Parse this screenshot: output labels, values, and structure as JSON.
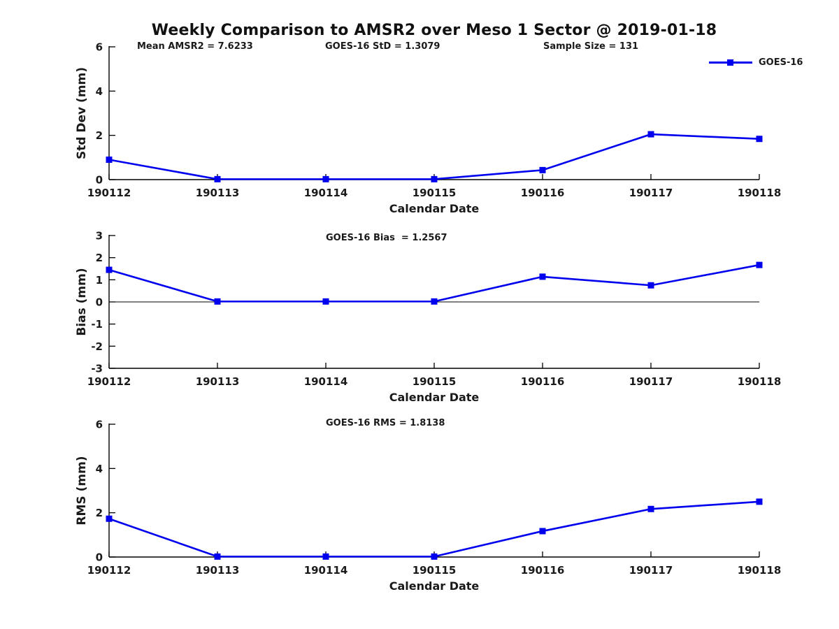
{
  "title": "Weekly Comparison to AMSR2 over Meso 1 Sector @ 2019-01-18",
  "header_stats": {
    "mean_amsr2": "Mean AMSR2 = 7.6233",
    "goes16_std": "GOES-16 StD = 1.3079",
    "sample_size": "Sample Size = 131"
  },
  "legend": {
    "label": "GOES-16",
    "color": "#0000EE",
    "marker": "square",
    "position": "top-right"
  },
  "axis_colors": {
    "axis": "#000000",
    "text": "#1a1a1a"
  },
  "chart_data": [
    {
      "type": "line",
      "categories": [
        "190112",
        "190113",
        "190114",
        "190115",
        "190116",
        "190117",
        "190118"
      ],
      "series": [
        {
          "name": "GOES-16",
          "values": [
            0.9,
            0.02,
            0.02,
            0.02,
            0.43,
            2.05,
            1.84
          ]
        }
      ],
      "xlabel": "Calendar Date",
      "ylabel": "Std Dev (mm)",
      "ylim": [
        0,
        6
      ],
      "yticks": [
        0,
        2,
        4,
        6
      ],
      "zero_line": false,
      "grid": false,
      "annotation": ""
    },
    {
      "type": "line",
      "categories": [
        "190112",
        "190113",
        "190114",
        "190115",
        "190116",
        "190117",
        "190118"
      ],
      "series": [
        {
          "name": "GOES-16",
          "values": [
            1.45,
            0.02,
            0.02,
            0.02,
            1.14,
            0.75,
            1.67
          ]
        }
      ],
      "xlabel": "Calendar Date",
      "ylabel": "Bias (mm)",
      "ylim": [
        -3,
        3
      ],
      "yticks": [
        -3,
        -2,
        -1,
        0,
        1,
        2,
        3
      ],
      "zero_line": true,
      "grid": false,
      "annotation": "GOES-16 Bias  = 1.2567"
    },
    {
      "type": "line",
      "categories": [
        "190112",
        "190113",
        "190114",
        "190115",
        "190116",
        "190117",
        "190118"
      ],
      "series": [
        {
          "name": "GOES-16",
          "values": [
            1.73,
            0.02,
            0.02,
            0.02,
            1.17,
            2.17,
            2.5
          ]
        }
      ],
      "xlabel": "Calendar Date",
      "ylabel": "RMS (mm)",
      "ylim": [
        0,
        6
      ],
      "yticks": [
        0,
        2,
        4,
        6
      ],
      "zero_line": false,
      "grid": false,
      "annotation": "GOES-16 RMS = 1.8138"
    }
  ]
}
